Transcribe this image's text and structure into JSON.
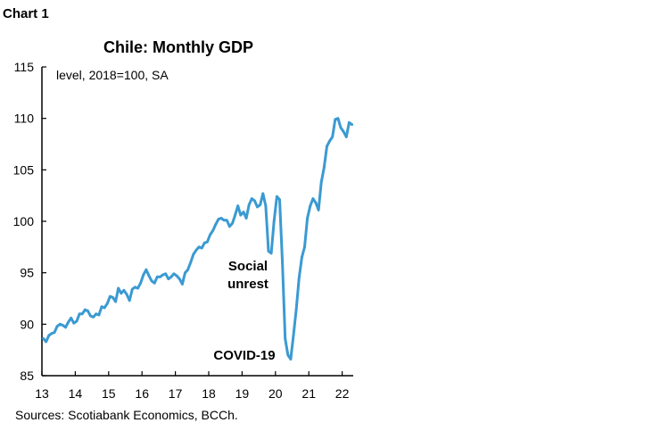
{
  "header": {
    "label": "Chart 1"
  },
  "chart_data": {
    "type": "line",
    "title": "Chile: Monthly GDP",
    "subtitle": "level, 2018=100, SA",
    "source": "Sources: Scotiabank Economics, BCCh.",
    "xlabel": "",
    "ylabel": "",
    "ylim": [
      85,
      115
    ],
    "yticks": [
      "85",
      "90",
      "95",
      "100",
      "105",
      "110",
      "115"
    ],
    "xticks": [
      "13",
      "14",
      "15",
      "16",
      "17",
      "18",
      "19",
      "20",
      "21",
      "22"
    ],
    "x_start": "2013-01",
    "frequency": "monthly",
    "grid": false,
    "line_color": "#3b9ad2",
    "annotation_color": "#e8203c",
    "annotations": [
      {
        "text_line1": "Social",
        "text_line2": "unrest",
        "date": "2019-10"
      },
      {
        "text_line1": "COVID-19",
        "text_line2": "",
        "date": "2020-06"
      }
    ],
    "series": [
      {
        "values": [
          88.6,
          88.3,
          88.9,
          89.1,
          89.2,
          89.8,
          90.0,
          89.9,
          89.7,
          90.2,
          90.6,
          90.1,
          90.3,
          91.0,
          91.0,
          91.4,
          91.3,
          90.8,
          90.7,
          91.0,
          90.9,
          91.7,
          91.6,
          92.0,
          92.7,
          92.6,
          92.2,
          93.5,
          93.0,
          93.3,
          92.9,
          92.3,
          93.4,
          93.6,
          93.5,
          94.0,
          94.8,
          95.3,
          94.7,
          94.2,
          94.0,
          94.6,
          94.6,
          94.8,
          94.9,
          94.4,
          94.6,
          94.9,
          94.7,
          94.4,
          93.9,
          95.0,
          95.3,
          96.0,
          96.8,
          97.2,
          97.5,
          97.4,
          97.9,
          98.0,
          98.7,
          99.1,
          99.7,
          100.2,
          100.3,
          100.1,
          100.1,
          99.5,
          99.8,
          100.6,
          101.5,
          100.6,
          100.9,
          100.3,
          101.6,
          102.2,
          102.0,
          101.4,
          101.6,
          102.7,
          101.5,
          97.1,
          96.9,
          100.0,
          102.4,
          102.1,
          96.0,
          88.6,
          87.0,
          86.6,
          89.0,
          91.5,
          94.5,
          96.5,
          97.5,
          100.3,
          101.5,
          102.2,
          101.8,
          101.1,
          103.8,
          105.2,
          107.3,
          107.8,
          108.2,
          109.9,
          110.0,
          109.1,
          108.7,
          108.2,
          109.6,
          109.4
        ]
      }
    ]
  }
}
